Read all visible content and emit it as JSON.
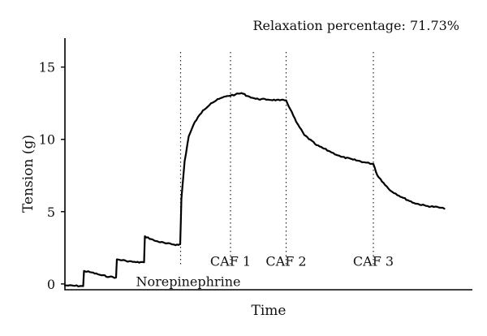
{
  "header": {
    "relaxation_text": "Relaxation percentage: 71.73%"
  },
  "chart_data": {
    "type": "line",
    "title": "",
    "xlabel": "Time",
    "ylabel": "Tension (g)",
    "xlim": [
      0,
      100
    ],
    "ylim": [
      -0.4,
      17
    ],
    "yticks": [
      0,
      5,
      10,
      15
    ],
    "grid": false,
    "series": [
      {
        "values": [
          [
            0,
            -0.1
          ],
          [
            4.5,
            -0.15
          ],
          [
            4.7,
            0.9
          ],
          [
            6.5,
            0.8
          ],
          [
            9,
            0.6
          ],
          [
            11,
            0.5
          ],
          [
            12.6,
            0.45
          ],
          [
            12.8,
            1.7
          ],
          [
            15,
            1.6
          ],
          [
            17.5,
            1.5
          ],
          [
            19.5,
            1.5
          ],
          [
            19.7,
            3.3
          ],
          [
            22,
            3.0
          ],
          [
            25,
            2.8
          ],
          [
            28,
            2.7
          ],
          [
            28.4,
            2.75
          ],
          [
            28.7,
            5.9
          ],
          [
            29.5,
            8.5
          ],
          [
            30.5,
            10.2
          ],
          [
            32,
            11.2
          ],
          [
            34,
            12.0
          ],
          [
            36,
            12.5
          ],
          [
            38,
            12.8
          ],
          [
            40,
            13.0
          ],
          [
            42,
            13.1
          ],
          [
            43.5,
            13.2
          ],
          [
            45,
            13.0
          ],
          [
            47,
            12.8
          ],
          [
            50,
            12.75
          ],
          [
            53,
            12.7
          ],
          [
            54.5,
            12.7
          ],
          [
            55.5,
            12.1
          ],
          [
            57,
            11.2
          ],
          [
            59,
            10.3
          ],
          [
            62,
            9.6
          ],
          [
            65,
            9.2
          ],
          [
            68,
            8.8
          ],
          [
            71,
            8.6
          ],
          [
            74,
            8.4
          ],
          [
            76,
            8.3
          ],
          [
            77,
            7.5
          ],
          [
            78.5,
            7.0
          ],
          [
            80,
            6.5
          ],
          [
            83,
            6.0
          ],
          [
            86,
            5.6
          ],
          [
            89,
            5.4
          ],
          [
            92,
            5.3
          ],
          [
            93.5,
            5.2
          ]
        ]
      }
    ],
    "annotations": [
      {
        "label": "Norepinephrine",
        "x": 28.5,
        "y": 0.2
      },
      {
        "label": "CAF 1",
        "x": 40.8,
        "y": 1.6
      },
      {
        "label": "CAF 2",
        "x": 54.5,
        "y": 1.6
      },
      {
        "label": "CAF 3",
        "x": 76.0,
        "y": 1.6
      }
    ],
    "event_lines_x": [
      28.5,
      40.8,
      54.5,
      76.0
    ]
  }
}
